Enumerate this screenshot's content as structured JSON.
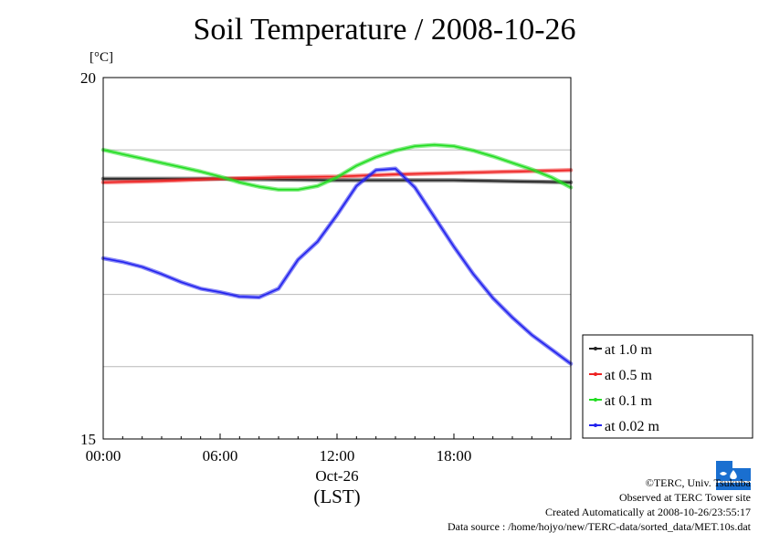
{
  "title": "Soil Temperature / 2008-10-26",
  "unit_label": "[°C]",
  "credits": {
    "copyright": "©TERC, Univ. Tsukuba",
    "observed": "Observed at TERC Tower site",
    "created": "Created Automatically at 2008-10-26/23:55:17",
    "source": "Data source : /home/hojyo/new/TERC-data/sorted_data/MET.10s.dat"
  },
  "colors": {
    "at 1.0 m": "#222222",
    "at 0.5 m": "#ee2222",
    "at 0.1 m": "#22dd22",
    "at 0.02 m": "#2222ee"
  },
  "chart_data": {
    "type": "line",
    "title": "Soil Temperature / 2008-10-26",
    "ylabel": "[°C]",
    "xlabel": "(LST)",
    "x_date_label": "Oct-26",
    "xlim": [
      0,
      24
    ],
    "ylim": [
      15,
      20
    ],
    "x_ticks": [
      "00:00",
      "06:00",
      "12:00",
      "18:00"
    ],
    "y_tick_labels": [
      "15",
      "20"
    ],
    "y_gridlines": [
      16,
      17,
      18,
      19
    ],
    "grid": true,
    "legend_position": "right-bottom, outside plot",
    "series": [
      {
        "name": "at 1.0 m",
        "x": [
          0,
          6,
          12,
          18,
          24
        ],
        "y": [
          18.6,
          18.6,
          18.58,
          18.58,
          18.55
        ]
      },
      {
        "name": "at 0.5 m",
        "x": [
          0,
          3,
          6,
          9,
          12,
          15,
          18,
          21,
          24
        ],
        "y": [
          18.55,
          18.57,
          18.6,
          18.62,
          18.63,
          18.66,
          18.68,
          18.7,
          18.72
        ]
      },
      {
        "name": "at 0.1 m",
        "x": [
          0,
          1,
          2,
          3,
          4,
          5,
          6,
          7,
          8,
          9,
          10,
          11,
          12,
          13,
          14,
          15,
          16,
          17,
          18,
          19,
          20,
          21,
          22,
          23,
          24
        ],
        "y": [
          19.0,
          18.94,
          18.88,
          18.82,
          18.76,
          18.7,
          18.63,
          18.55,
          18.49,
          18.45,
          18.45,
          18.5,
          18.62,
          18.78,
          18.9,
          18.99,
          19.05,
          19.07,
          19.05,
          18.99,
          18.91,
          18.82,
          18.73,
          18.62,
          18.48
        ]
      },
      {
        "name": "at 0.02 m",
        "x": [
          0,
          1,
          2,
          3,
          4,
          5,
          6,
          7,
          8,
          9,
          10,
          11,
          12,
          13,
          14,
          15,
          16,
          17,
          18,
          19,
          20,
          21,
          22,
          23,
          24
        ],
        "y": [
          17.5,
          17.45,
          17.38,
          17.28,
          17.17,
          17.08,
          17.03,
          16.97,
          16.96,
          17.08,
          17.48,
          17.73,
          18.1,
          18.5,
          18.72,
          18.74,
          18.48,
          18.07,
          17.66,
          17.28,
          16.95,
          16.68,
          16.44,
          16.24,
          16.04
        ]
      }
    ]
  }
}
